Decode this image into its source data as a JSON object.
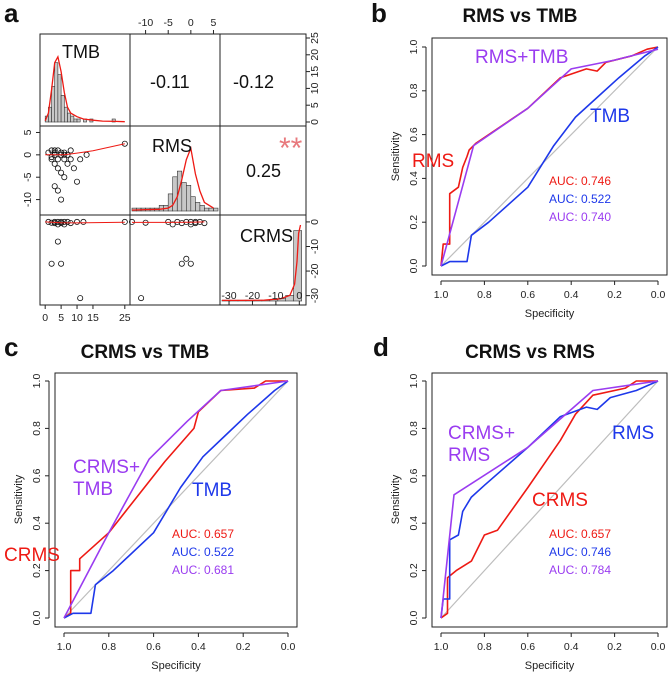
{
  "colors": {
    "red": "#ee1a14",
    "blue": "#1e38ea",
    "purple": "#9a3cf0",
    "diag": "#bdbdbd",
    "sig": "#e8797d",
    "hist": "#c8c8c8"
  },
  "chart_data": [
    {
      "panel": "a",
      "type": "scatter",
      "title": "",
      "variables": [
        "TMB",
        "RMS",
        "CRMS"
      ],
      "correlations": [
        {
          "pair": "TMB-RMS",
          "value": "-0.11",
          "significance": ""
        },
        {
          "pair": "TMB-CRMS",
          "value": "-0.12",
          "significance": ""
        },
        {
          "pair": "RMS-CRMS",
          "value": "0.25",
          "significance": "**"
        }
      ],
      "top_ticks": [
        "-10",
        "-5",
        "0",
        "5"
      ],
      "top_tick_values": [
        -10,
        -5,
        0,
        5
      ],
      "right_ticks": [
        "25",
        "20",
        "15",
        "10",
        "5",
        "0"
      ],
      "right_tick_values": [
        25,
        20,
        15,
        10,
        5,
        0
      ],
      "left_ticks": [
        "5",
        "0",
        "-5",
        "-10"
      ],
      "left_tick_values": [
        5,
        0,
        -5,
        -10
      ],
      "bottom_ticks": [
        "0",
        "5",
        "10",
        "15",
        "25"
      ],
      "bottom_tick_values": [
        0,
        5,
        10,
        15,
        25
      ],
      "crms_ticks": [
        "-30",
        "-20",
        "-10",
        "0"
      ],
      "crms_tick_values": [
        -30,
        -20,
        -10,
        0
      ],
      "right_ticks_low": [
        "0",
        "-10",
        "-20",
        "-30"
      ],
      "right_ticks_low_values": [
        0,
        -10,
        -20,
        -30
      ],
      "tmb_range": [
        -1,
        26
      ],
      "rms_range": [
        -13,
        6
      ],
      "crms_range": [
        -33,
        2
      ],
      "hist_range": [
        0,
        27
      ],
      "tmb_hist": [
        2,
        5,
        12,
        20,
        16,
        9,
        5,
        3,
        2,
        1,
        1,
        0,
        1,
        0,
        1,
        0,
        0,
        0,
        0,
        0,
        0,
        1
      ],
      "tmb_density": [
        [
          0,
          0.4
        ],
        [
          1,
          3
        ],
        [
          2,
          11
        ],
        [
          3,
          20
        ],
        [
          4,
          22
        ],
        [
          5,
          17
        ],
        [
          6,
          10
        ],
        [
          7,
          5
        ],
        [
          8,
          3
        ],
        [
          10,
          1.8
        ],
        [
          12,
          1
        ],
        [
          15,
          0.6
        ],
        [
          18,
          0.3
        ],
        [
          22,
          0.2
        ],
        [
          25,
          0.1
        ]
      ],
      "rms_hist": [
        1,
        1,
        1,
        1,
        1,
        1,
        2,
        2,
        6,
        12,
        14,
        10,
        9,
        5,
        3,
        2,
        1,
        1,
        1
      ],
      "rms_density": [
        [
          -13,
          0.3
        ],
        [
          -10,
          0.5
        ],
        [
          -7,
          0.6
        ],
        [
          -5,
          1
        ],
        [
          -4,
          2
        ],
        [
          -3,
          5
        ],
        [
          -2,
          11
        ],
        [
          -1,
          18
        ],
        [
          0,
          22
        ],
        [
          1,
          13
        ],
        [
          2,
          7
        ],
        [
          3,
          3
        ],
        [
          5,
          1
        ]
      ],
      "crms_hist_values": [
        0.3,
        0.3,
        0.3,
        0.3,
        0.3,
        0.3,
        0.5,
        0.8,
        2,
        25
      ],
      "crms_density": [
        [
          -33,
          0.2
        ],
        [
          -25,
          0.2
        ],
        [
          -15,
          0.3
        ],
        [
          -8,
          0.8
        ],
        [
          -4,
          2
        ],
        [
          -2,
          6
        ],
        [
          -1,
          14
        ],
        [
          -0.3,
          24
        ],
        [
          0.5,
          27
        ]
      ],
      "scatter_tmb_rms": [
        [
          2,
          1
        ],
        [
          3,
          0
        ],
        [
          3,
          0.5
        ],
        [
          4,
          -1
        ],
        [
          4,
          1
        ],
        [
          5,
          0
        ],
        [
          5,
          0.5
        ],
        [
          6,
          -1
        ],
        [
          6,
          0.5
        ],
        [
          7,
          0
        ],
        [
          8,
          1
        ],
        [
          2,
          -1
        ],
        [
          3,
          -2
        ],
        [
          4,
          -3
        ],
        [
          5,
          -4
        ],
        [
          6,
          -5
        ],
        [
          4,
          -8
        ],
        [
          5,
          -10
        ],
        [
          9,
          -3
        ],
        [
          10,
          -6
        ],
        [
          1,
          0.5
        ],
        [
          2,
          -0.5
        ],
        [
          3,
          1
        ],
        [
          7,
          -2
        ],
        [
          8,
          -1
        ],
        [
          11,
          -1
        ],
        [
          13,
          0
        ],
        [
          3,
          -7
        ],
        [
          6,
          0
        ],
        [
          25,
          2.5
        ]
      ],
      "scatter_tmb_crms": [
        [
          1,
          0
        ],
        [
          2,
          -0.3
        ],
        [
          3,
          0
        ],
        [
          3,
          -0.5
        ],
        [
          4,
          0
        ],
        [
          4,
          -1
        ],
        [
          5,
          0
        ],
        [
          5,
          -0.5
        ],
        [
          6,
          0
        ],
        [
          6,
          -1
        ],
        [
          7,
          0
        ],
        [
          8,
          -0.5
        ],
        [
          10,
          0
        ],
        [
          12,
          0
        ],
        [
          25,
          0
        ],
        [
          2,
          -17
        ],
        [
          5,
          -17
        ],
        [
          4,
          -8
        ],
        [
          11,
          -31
        ]
      ],
      "scatter_rms_crms": [
        [
          -13,
          0
        ],
        [
          -10,
          -0.3
        ],
        [
          -5,
          0
        ],
        [
          -4,
          -1
        ],
        [
          -3,
          0
        ],
        [
          -2,
          -0.5
        ],
        [
          -1,
          0
        ],
        [
          0,
          0
        ],
        [
          0,
          -1
        ],
        [
          1,
          0
        ],
        [
          1,
          -0.5
        ],
        [
          2,
          0
        ],
        [
          3,
          -0.5
        ],
        [
          -2,
          -17
        ],
        [
          0,
          -17
        ],
        [
          -1,
          -15
        ],
        [
          -11,
          -31
        ]
      ],
      "tmb_rms_loess": [
        [
          0,
          0
        ],
        [
          3,
          0
        ],
        [
          6,
          0
        ],
        [
          10,
          0.4
        ],
        [
          15,
          0.9
        ],
        [
          25,
          2.5
        ]
      ],
      "tmb_crms_loess": [
        [
          0,
          0
        ],
        [
          5,
          -0.3
        ],
        [
          10,
          -0.4
        ],
        [
          25,
          -0.1
        ]
      ],
      "rms_crms_loess": [
        [
          -13,
          -0.2
        ],
        [
          -5,
          -0.2
        ],
        [
          0,
          -0.1
        ],
        [
          3,
          0
        ]
      ]
    },
    {
      "panel": "b",
      "type": "line",
      "title": "RMS vs TMB",
      "xlabel": "Specificity",
      "ylabel": "Sensitivity",
      "xlim": [
        1.0,
        0.0
      ],
      "ylim": [
        0.0,
        1.0
      ],
      "xticks": [
        "1.0",
        "0.8",
        "0.6",
        "0.4",
        "0.2",
        "0.0"
      ],
      "xtick_values": [
        1.0,
        0.8,
        0.6,
        0.4,
        0.2,
        0.0
      ],
      "yticks": [
        "0.0",
        "0.2",
        "0.4",
        "0.6",
        "0.8",
        "1.0"
      ],
      "ytick_values": [
        0.0,
        0.2,
        0.4,
        0.6,
        0.8,
        1.0
      ],
      "series": [
        {
          "name": "RMS",
          "color": "red",
          "auc": "AUC: 0.746",
          "points": [
            [
              1.0,
              0.0
            ],
            [
              0.99,
              0.1
            ],
            [
              0.96,
              0.1
            ],
            [
              0.96,
              0.33
            ],
            [
              0.92,
              0.36
            ],
            [
              0.9,
              0.45
            ],
            [
              0.88,
              0.5
            ],
            [
              0.87,
              0.53
            ],
            [
              0.84,
              0.56
            ],
            [
              0.6,
              0.72
            ],
            [
              0.45,
              0.86
            ],
            [
              0.33,
              0.9
            ],
            [
              0.28,
              0.89
            ],
            [
              0.24,
              0.93
            ],
            [
              0.12,
              0.96
            ],
            [
              0.05,
              0.99
            ],
            [
              0.0,
              1.0
            ]
          ]
        },
        {
          "name": "TMB",
          "color": "blue",
          "auc": "AUC: 0.522",
          "points": [
            [
              1.0,
              0.0
            ],
            [
              0.96,
              0.02
            ],
            [
              0.88,
              0.02
            ],
            [
              0.86,
              0.14
            ],
            [
              0.78,
              0.2
            ],
            [
              0.6,
              0.36
            ],
            [
              0.48,
              0.55
            ],
            [
              0.38,
              0.68
            ],
            [
              0.28,
              0.77
            ],
            [
              0.18,
              0.86
            ],
            [
              0.06,
              0.96
            ],
            [
              0.0,
              1.0
            ]
          ]
        },
        {
          "name": "RMS+TMB",
          "color": "purple",
          "auc": "AUC: 0.740",
          "points": [
            [
              1.0,
              0.0
            ],
            [
              0.85,
              0.55
            ],
            [
              0.6,
              0.72
            ],
            [
              0.4,
              0.9
            ],
            [
              0.2,
              0.94
            ],
            [
              0.0,
              0.99
            ]
          ]
        }
      ]
    },
    {
      "panel": "c",
      "type": "line",
      "title": "CRMS vs TMB",
      "xlabel": "Specificity",
      "ylabel": "Sensitivity",
      "xlim": [
        1.0,
        0.0
      ],
      "ylim": [
        0.0,
        1.0
      ],
      "xticks": [
        "1.0",
        "0.8",
        "0.6",
        "0.4",
        "0.2",
        "0.0"
      ],
      "xtick_values": [
        1.0,
        0.8,
        0.6,
        0.4,
        0.2,
        0.0
      ],
      "yticks": [
        "0.0",
        "0.2",
        "0.4",
        "0.6",
        "0.8",
        "1.0"
      ],
      "ytick_values": [
        0.0,
        0.2,
        0.4,
        0.6,
        0.8,
        1.0
      ],
      "series": [
        {
          "name": "CRMS",
          "color": "red",
          "auc": "AUC: 0.657",
          "points": [
            [
              1.0,
              0.0
            ],
            [
              0.97,
              0.02
            ],
            [
              0.97,
              0.2
            ],
            [
              0.93,
              0.2
            ],
            [
              0.93,
              0.25
            ],
            [
              0.8,
              0.36
            ],
            [
              0.7,
              0.48
            ],
            [
              0.55,
              0.66
            ],
            [
              0.42,
              0.8
            ],
            [
              0.4,
              0.87
            ],
            [
              0.3,
              0.96
            ],
            [
              0.15,
              0.97
            ],
            [
              0.1,
              1.0
            ],
            [
              0.0,
              1.0
            ]
          ]
        },
        {
          "name": "TMB",
          "color": "blue",
          "auc": "AUC: 0.522",
          "points": [
            [
              1.0,
              0.0
            ],
            [
              0.96,
              0.02
            ],
            [
              0.88,
              0.02
            ],
            [
              0.86,
              0.14
            ],
            [
              0.78,
              0.2
            ],
            [
              0.6,
              0.36
            ],
            [
              0.48,
              0.55
            ],
            [
              0.38,
              0.68
            ],
            [
              0.28,
              0.77
            ],
            [
              0.18,
              0.86
            ],
            [
              0.06,
              0.96
            ],
            [
              0.0,
              1.0
            ]
          ]
        },
        {
          "name": "CRMS+\nTMB",
          "color": "purple",
          "auc": "AUC: 0.681",
          "points": [
            [
              1.0,
              0.0
            ],
            [
              0.8,
              0.36
            ],
            [
              0.62,
              0.67
            ],
            [
              0.45,
              0.83
            ],
            [
              0.3,
              0.96
            ],
            [
              0.0,
              1.0
            ]
          ]
        }
      ]
    },
    {
      "panel": "d",
      "type": "line",
      "title": "CRMS vs RMS",
      "xlabel": "Specificity",
      "ylabel": "Sensitivity",
      "xlim": [
        1.0,
        0.0
      ],
      "ylim": [
        0.0,
        1.0
      ],
      "xticks": [
        "1.0",
        "0.8",
        "0.6",
        "0.4",
        "0.2",
        "0.0"
      ],
      "xtick_values": [
        1.0,
        0.8,
        0.6,
        0.4,
        0.2,
        0.0
      ],
      "yticks": [
        "0.0",
        "0.2",
        "0.4",
        "0.6",
        "0.8",
        "1.0"
      ],
      "ytick_values": [
        0.0,
        0.2,
        0.4,
        0.6,
        0.8,
        1.0
      ],
      "series": [
        {
          "name": "CRMS",
          "color": "red",
          "auc": "AUC: 0.657",
          "points": [
            [
              1.0,
              0.0
            ],
            [
              0.97,
              0.02
            ],
            [
              0.97,
              0.17
            ],
            [
              0.93,
              0.2
            ],
            [
              0.86,
              0.24
            ],
            [
              0.8,
              0.35
            ],
            [
              0.74,
              0.37
            ],
            [
              0.6,
              0.55
            ],
            [
              0.45,
              0.75
            ],
            [
              0.38,
              0.86
            ],
            [
              0.3,
              0.94
            ],
            [
              0.15,
              0.97
            ],
            [
              0.1,
              1.0
            ],
            [
              0.0,
              1.0
            ]
          ]
        },
        {
          "name": "RMS",
          "color": "blue",
          "auc": "AUC: 0.746",
          "points": [
            [
              1.0,
              0.0
            ],
            [
              0.99,
              0.08
            ],
            [
              0.96,
              0.08
            ],
            [
              0.96,
              0.33
            ],
            [
              0.92,
              0.35
            ],
            [
              0.9,
              0.45
            ],
            [
              0.86,
              0.51
            ],
            [
              0.8,
              0.56
            ],
            [
              0.6,
              0.72
            ],
            [
              0.45,
              0.85
            ],
            [
              0.33,
              0.89
            ],
            [
              0.28,
              0.88
            ],
            [
              0.22,
              0.93
            ],
            [
              0.1,
              0.96
            ],
            [
              0.0,
              1.0
            ]
          ]
        },
        {
          "name": "CRMS+\nRMS",
          "color": "purple",
          "auc": "AUC: 0.784",
          "points": [
            [
              1.0,
              0.0
            ],
            [
              0.94,
              0.52
            ],
            [
              0.6,
              0.72
            ],
            [
              0.3,
              0.96
            ],
            [
              0.0,
              1.0
            ]
          ]
        }
      ]
    }
  ]
}
